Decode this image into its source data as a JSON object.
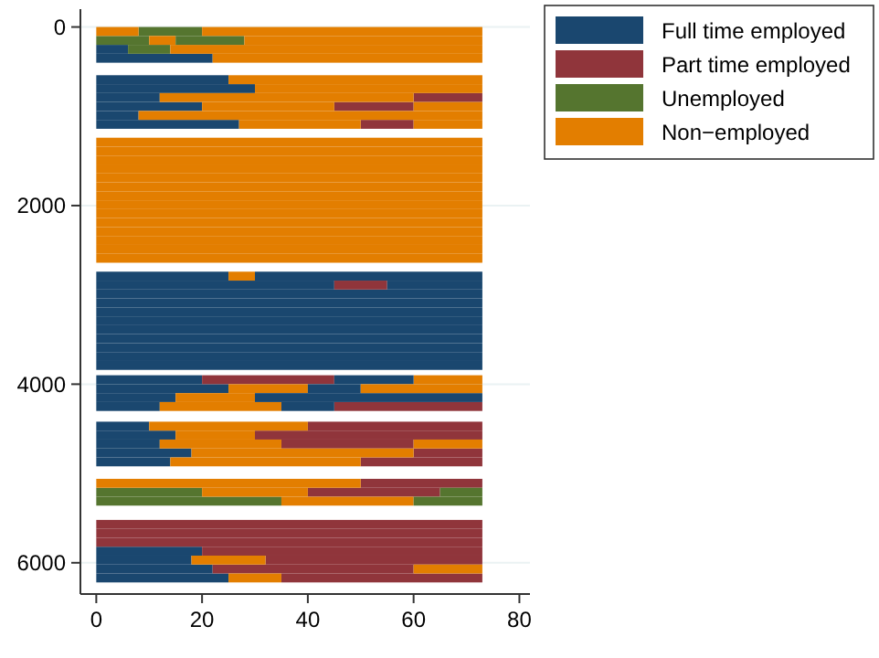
{
  "chart_data": {
    "type": "bar",
    "orientation": "horizontal",
    "xlim": [
      -3,
      82
    ],
    "xticks": [
      0,
      20,
      40,
      60,
      80
    ],
    "ylim": [
      6350,
      -200
    ],
    "yticks": [
      0,
      2000,
      4000,
      6000
    ],
    "grid": "y",
    "legend": "top right",
    "series": [
      {
        "name": "Full time employed",
        "color": "#1a476f",
        "x": [
          200,
          300,
          540,
          640,
          740,
          840,
          940,
          1040,
          2740,
          2840,
          2940,
          3040,
          3140,
          3240,
          3340,
          3440,
          3540,
          3640,
          3740,
          3900,
          4000,
          4100,
          4200,
          4420,
          4520,
          4620,
          4720,
          4820,
          5820,
          5920,
          6020,
          6120
        ],
        "base": [
          0,
          0,
          0,
          0,
          0,
          0,
          0,
          0,
          0,
          0,
          0,
          0,
          0,
          0,
          0,
          0,
          0,
          0,
          0,
          0,
          0,
          0,
          0,
          0,
          0,
          0,
          0,
          0,
          0,
          0,
          0,
          0
        ],
        "values": [
          6,
          22,
          25,
          30,
          12,
          20,
          8,
          27,
          25,
          45,
          73,
          73,
          73,
          73,
          73,
          73,
          73,
          73,
          73,
          20,
          25,
          15,
          12,
          10,
          15,
          12,
          18,
          14,
          20,
          18,
          22,
          25
        ]
      },
      {
        "name": "Part time employed",
        "color": "#90353b",
        "x": [
          740,
          840,
          1040,
          2840,
          3900,
          4200,
          4420,
          4520,
          4620,
          4720,
          4820,
          5060,
          5160,
          5520,
          5620,
          5720,
          5820,
          5920,
          6020,
          6120
        ],
        "base": [
          60,
          45,
          50,
          45,
          20,
          45,
          40,
          30,
          35,
          60,
          50,
          50,
          40,
          0,
          0,
          0,
          20,
          32,
          22,
          35
        ],
        "values": [
          13,
          15,
          10,
          10,
          25,
          28,
          33,
          43,
          25,
          13,
          23,
          23,
          25,
          73,
          73,
          73,
          53,
          41,
          38,
          38
        ]
      },
      {
        "name": "Unemployed",
        "color": "#55752f",
        "x": [
          0,
          100,
          200,
          5160,
          5260
        ],
        "base": [
          8,
          0,
          6,
          0,
          0
        ],
        "values": [
          12,
          10,
          8,
          20,
          35
        ]
      },
      {
        "name": "Non−employed",
        "color": "#e37e00",
        "x": [
          0,
          100,
          200,
          300,
          540,
          640,
          740,
          840,
          940,
          1040,
          1240,
          1340,
          1440,
          1540,
          1640,
          1740,
          1840,
          1940,
          2040,
          2140,
          2240,
          2340,
          2440,
          2540,
          2740,
          3900,
          4000,
          4100,
          4200,
          4420,
          4520,
          4620,
          4720,
          4820,
          5060,
          5160,
          5260,
          5920,
          6020,
          6120
        ],
        "base": [
          0,
          10,
          14,
          22,
          25,
          30,
          12,
          20,
          8,
          27,
          0,
          0,
          0,
          0,
          0,
          0,
          0,
          0,
          0,
          0,
          0,
          0,
          0,
          0,
          25,
          60,
          25,
          15,
          12,
          10,
          15,
          12,
          18,
          14,
          0,
          20,
          35,
          18,
          60,
          25
        ],
        "values": [
          8,
          5,
          59,
          51,
          48,
          43,
          48,
          25,
          65,
          23,
          73,
          73,
          73,
          73,
          73,
          73,
          73,
          73,
          73,
          73,
          73,
          73,
          73,
          73,
          5,
          13,
          15,
          15,
          23,
          30,
          15,
          23,
          42,
          36,
          50,
          20,
          25,
          14,
          13,
          10
        ]
      },
      {
        "color": "#1a476f",
        "x": [
          2740,
          2840,
          3900,
          4000,
          4100,
          4200
        ],
        "base": [
          30,
          55,
          45,
          40,
          30,
          35
        ],
        "values": [
          43,
          18,
          15,
          10,
          43,
          10
        ]
      },
      {
        "color": "#55752f",
        "x": [
          100,
          5160,
          5260
        ],
        "base": [
          15,
          65,
          60
        ],
        "values": [
          13,
          8,
          13
        ]
      },
      {
        "color": "#e37e00",
        "x": [
          0,
          100,
          840,
          1040,
          4000,
          4620
        ],
        "base": [
          20,
          28,
          60,
          60,
          50,
          60
        ],
        "values": [
          53,
          45,
          13,
          13,
          23,
          13
        ]
      }
    ]
  }
}
